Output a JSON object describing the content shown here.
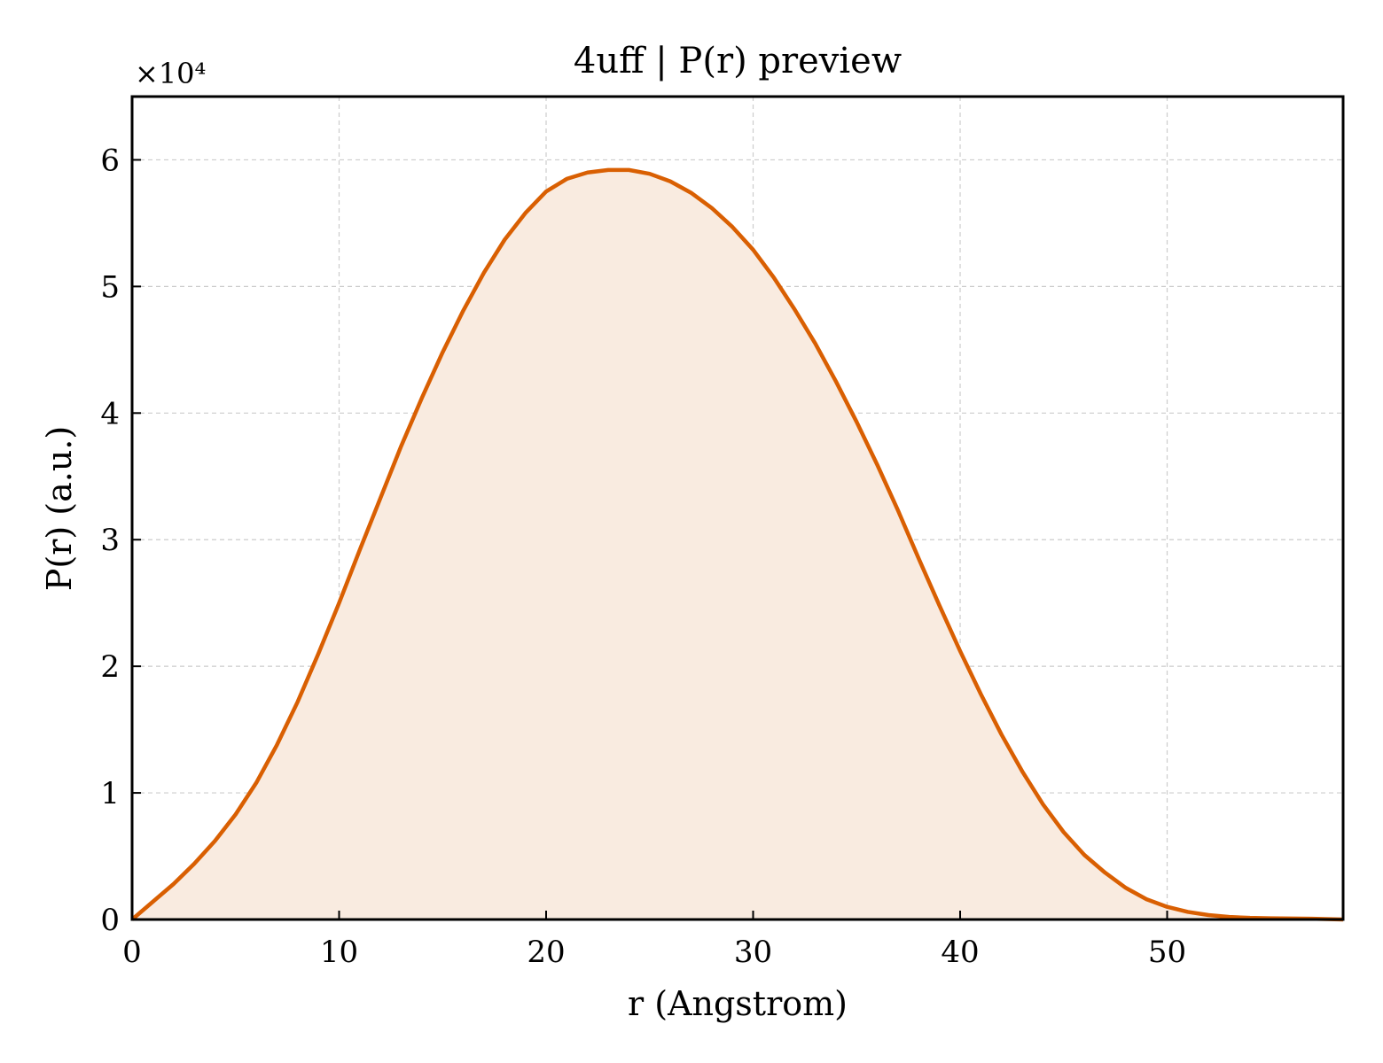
{
  "chart_data": {
    "type": "area",
    "title": "4uff | P(r) preview",
    "xlabel": "r (Angstrom)",
    "ylabel": "P(r) (a.u.)",
    "y_offset_label": "×10⁴",
    "y_scale": 10000,
    "xlim": [
      0,
      58.5
    ],
    "ylim": [
      0,
      65000
    ],
    "grid": true,
    "line_color": "#d95f02",
    "fill_color": "#f9ebe0",
    "x_ticks": [
      0,
      10,
      20,
      30,
      40,
      50
    ],
    "x_tick_labels": [
      "0",
      "10",
      "20",
      "30",
      "40",
      "50"
    ],
    "y_ticks": [
      0,
      10000,
      20000,
      30000,
      40000,
      50000,
      60000
    ],
    "y_tick_labels": [
      "0",
      "1",
      "2",
      "3",
      "4",
      "5",
      "6"
    ],
    "series": [
      {
        "x": [
          0,
          1,
          2,
          3,
          4,
          5,
          6,
          7,
          8,
          9,
          10,
          11,
          12,
          13,
          14,
          15,
          16,
          17,
          18,
          19,
          20,
          21,
          22,
          23,
          24,
          25,
          26,
          27,
          28,
          29,
          30,
          31,
          32,
          33,
          34,
          35,
          36,
          37,
          38,
          39,
          40,
          41,
          42,
          43,
          44,
          45,
          46,
          47,
          48,
          49,
          50,
          51,
          52,
          53,
          54,
          55,
          56,
          57,
          58.5
        ],
        "y": [
          0,
          1400,
          2800,
          4400,
          6200,
          8300,
          10800,
          13800,
          17200,
          21000,
          25000,
          29200,
          33300,
          37400,
          41200,
          44800,
          48100,
          51100,
          53700,
          55800,
          57500,
          58500,
          59000,
          59200,
          59200,
          58900,
          58300,
          57400,
          56200,
          54700,
          52900,
          50700,
          48200,
          45500,
          42500,
          39300,
          35900,
          32300,
          28500,
          24800,
          21200,
          17800,
          14600,
          11700,
          9100,
          6900,
          5100,
          3700,
          2500,
          1600,
          1000,
          600,
          350,
          200,
          130,
          100,
          80,
          60,
          0
        ]
      }
    ]
  }
}
